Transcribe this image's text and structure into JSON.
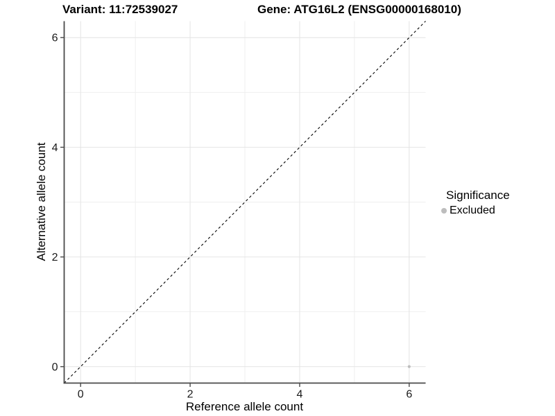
{
  "chart_data": {
    "type": "scatter",
    "title_left": "Variant: 11:72539027",
    "title_right": "Gene: ATG16L2 (ENSG00000168010)",
    "xlabel": "Reference allele count",
    "ylabel": "Alternative allele count",
    "xlim": [
      -0.3,
      6.3
    ],
    "ylim": [
      -0.3,
      6.3
    ],
    "x_major_breaks": [
      0,
      2,
      4,
      6
    ],
    "x_minor_breaks": [
      1,
      3,
      5
    ],
    "y_major_breaks": [
      0,
      2,
      4,
      6
    ],
    "y_minor_breaks": [
      1,
      3,
      5
    ],
    "grid": true,
    "reference_line": {
      "type": "identity",
      "slope": 1,
      "intercept": 0,
      "style": "dashed",
      "color": "#000000"
    },
    "series": [
      {
        "name": "Excluded",
        "color": "#bdbdbd",
        "points": [
          {
            "x": 6,
            "y": 0
          }
        ]
      }
    ],
    "legend": {
      "title": "Significance",
      "position": "right",
      "items": [
        {
          "label": "Excluded",
          "color": "#bdbdbd"
        }
      ]
    },
    "colors": {
      "background": "#ffffff",
      "grid_major": "#e4e4e4",
      "grid_minor": "#efefef",
      "axis_line": "#4a4a4a",
      "tick_text": "#1a1a1a"
    }
  }
}
